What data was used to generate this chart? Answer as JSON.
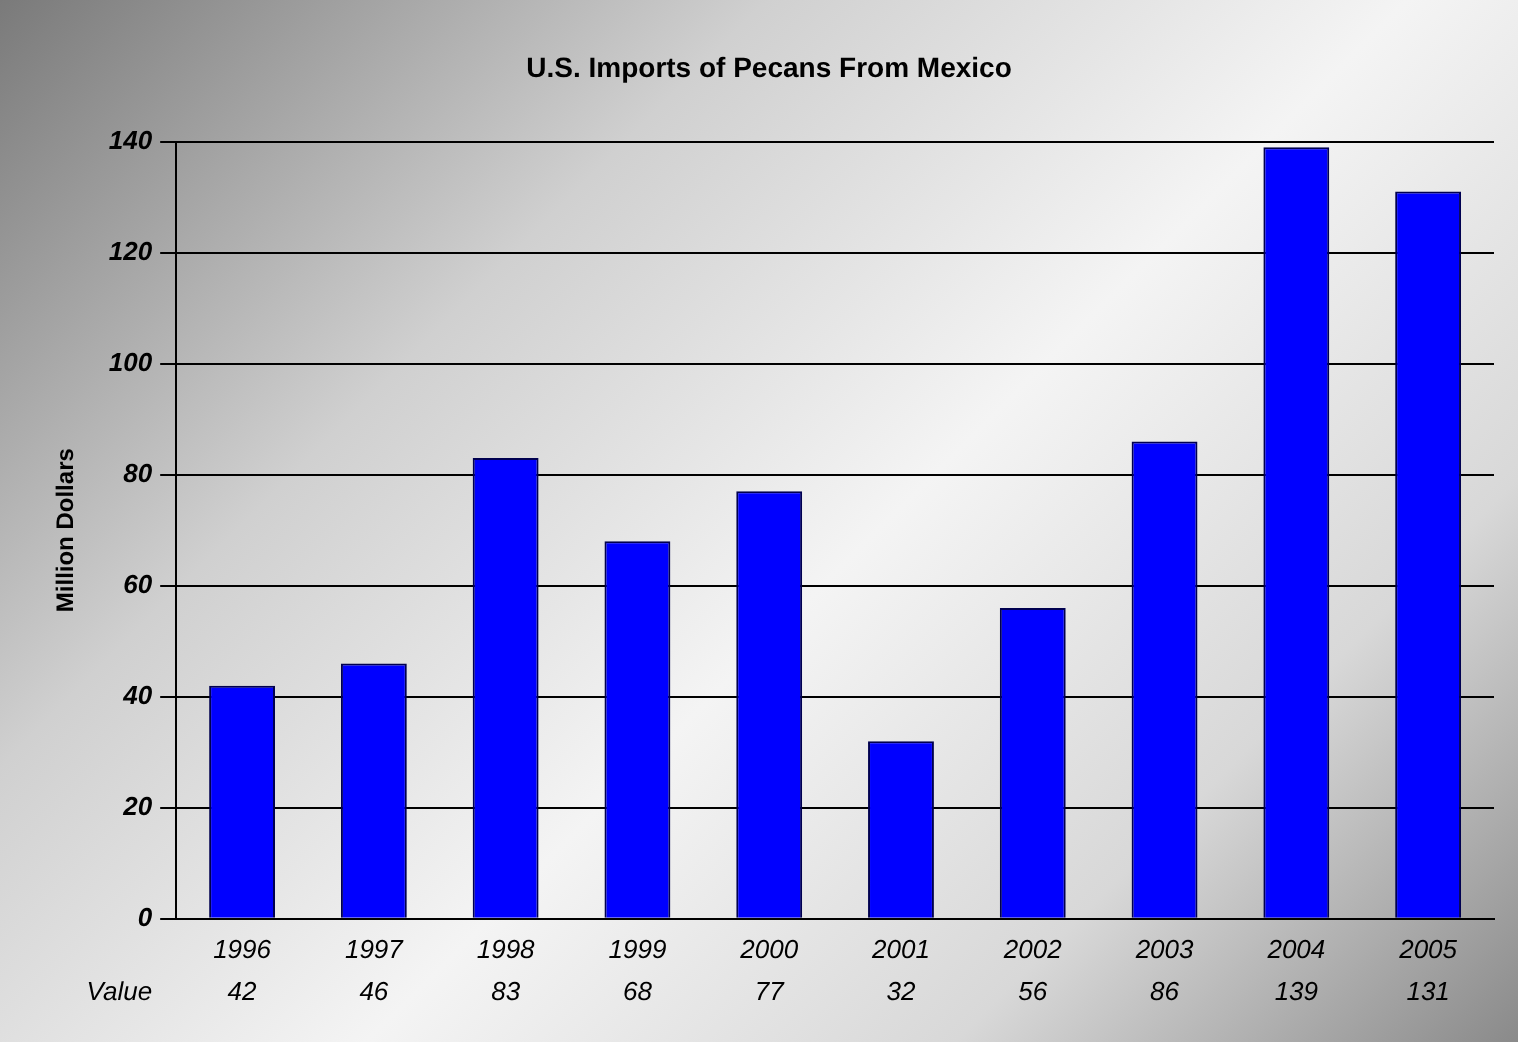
{
  "chart_data": {
    "type": "bar",
    "title": "U.S. Imports of Pecans From Mexico",
    "ylabel": "Million Dollars",
    "categories": [
      "1996",
      "1997",
      "1998",
      "1999",
      "2000",
      "2001",
      "2002",
      "2003",
      "2004",
      "2005"
    ],
    "series": [
      {
        "name": "Value",
        "color": "#0000ff",
        "values": [
          42,
          46,
          83,
          68,
          77,
          32,
          56,
          86,
          139,
          131
        ]
      }
    ],
    "ylim": [
      0,
      140
    ],
    "yticks": [
      0,
      20,
      40,
      60,
      80,
      100,
      120,
      140
    ],
    "grid": "y",
    "data_labels": true
  }
}
